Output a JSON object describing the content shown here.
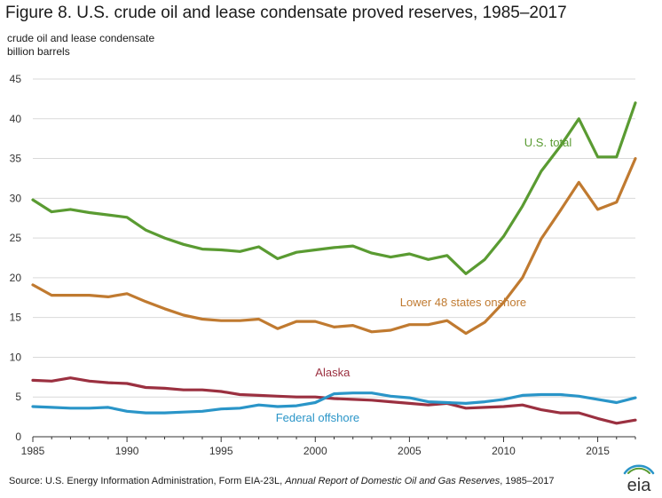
{
  "header": {
    "title": "Figure 8. U.S. crude oil and lease condensate proved reserves, 1985–2017",
    "unit_line1": "crude oil and lease condensate",
    "unit_line2": "billion barrels"
  },
  "footer": {
    "source_prefix": "Source: U.S. Energy Information Administration, Form EIA-23L, ",
    "source_italic": "Annual Report of Domestic Oil and Gas Reserves",
    "source_suffix": ", 1985–2017",
    "logo_text": "eia"
  },
  "chart_data": {
    "type": "line",
    "title": "Figure 8. U.S. crude oil and lease condensate proved reserves, 1985–2017",
    "ylabel": "crude oil and lease condensate billion barrels",
    "xlim": [
      1985,
      2017
    ],
    "ylim": [
      0,
      45
    ],
    "x_ticks": [
      1985,
      1990,
      1995,
      2000,
      2005,
      2010,
      2015
    ],
    "y_ticks": [
      0,
      5,
      10,
      15,
      20,
      25,
      30,
      35,
      40,
      45
    ],
    "grid": "horizontal",
    "x": [
      1985,
      1986,
      1987,
      1988,
      1989,
      1990,
      1991,
      1992,
      1993,
      1994,
      1995,
      1996,
      1997,
      1998,
      1999,
      2000,
      2001,
      2002,
      2003,
      2004,
      2005,
      2006,
      2007,
      2008,
      2009,
      2010,
      2011,
      2012,
      2013,
      2014,
      2015,
      2016,
      2017
    ],
    "series": [
      {
        "name": "U.S. total",
        "color": "#5a9b32",
        "values": [
          29.8,
          28.3,
          28.6,
          28.2,
          27.9,
          27.6,
          26.0,
          25.0,
          24.2,
          23.6,
          23.5,
          23.3,
          23.9,
          22.4,
          23.2,
          23.5,
          23.8,
          24.0,
          23.1,
          22.6,
          23.0,
          22.3,
          22.8,
          20.5,
          22.3,
          25.2,
          29.0,
          33.4,
          36.5,
          40.0,
          35.2,
          35.2,
          42.0
        ]
      },
      {
        "name": "Lower 48 states onshore",
        "color": "#c07a30",
        "values": [
          19.1,
          17.8,
          17.8,
          17.8,
          17.6,
          18.0,
          17.0,
          16.1,
          15.3,
          14.8,
          14.6,
          14.6,
          14.8,
          13.6,
          14.5,
          14.5,
          13.8,
          14.0,
          13.2,
          13.4,
          14.1,
          14.1,
          14.6,
          13.0,
          14.4,
          16.9,
          20.0,
          24.9,
          28.4,
          32.0,
          28.6,
          29.5,
          35.0
        ]
      },
      {
        "name": "Alaska",
        "color": "#9b3040",
        "values": [
          7.1,
          7.0,
          7.4,
          7.0,
          6.8,
          6.7,
          6.2,
          6.1,
          5.9,
          5.9,
          5.7,
          5.3,
          5.2,
          5.1,
          5.0,
          5.0,
          4.8,
          4.7,
          4.6,
          4.4,
          4.2,
          4.0,
          4.2,
          3.6,
          3.7,
          3.8,
          4.0,
          3.4,
          3.0,
          3.0,
          2.3,
          1.7,
          2.1
        ]
      },
      {
        "name": "Federal offshore",
        "color": "#2a95c8",
        "values": [
          3.8,
          3.7,
          3.6,
          3.6,
          3.7,
          3.2,
          3.0,
          3.0,
          3.1,
          3.2,
          3.5,
          3.6,
          4.0,
          3.8,
          3.9,
          4.3,
          5.4,
          5.5,
          5.5,
          5.1,
          4.9,
          4.4,
          4.3,
          4.2,
          4.4,
          4.7,
          5.2,
          5.3,
          5.3,
          5.1,
          4.7,
          4.3,
          4.9
        ]
      }
    ],
    "annotations": [
      {
        "text": "U.S. total",
        "x": 2011.1,
        "y": 36.5,
        "color": "#5a9b32"
      },
      {
        "text": "Lower 48 states onshore",
        "x": 2004.5,
        "y": 16.4,
        "color": "#c07a30"
      },
      {
        "text": "Alaska",
        "x": 2000.0,
        "y": 7.6,
        "color": "#9b3040"
      },
      {
        "text": "Federal offshore",
        "x": 1997.9,
        "y": 1.9,
        "color": "#2a95c8"
      }
    ]
  }
}
